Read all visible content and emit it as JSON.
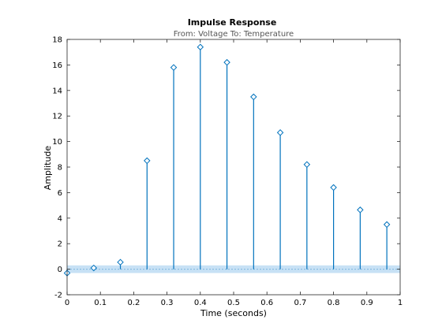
{
  "chart_data": {
    "type": "stem",
    "title": "Impulse Response",
    "subtitle": "From: Voltage  To: Temperature",
    "xlabel": "Time (seconds)",
    "ylabel": "Amplitude",
    "xlim": [
      0,
      1
    ],
    "ylim": [
      -2,
      18
    ],
    "xticks": [
      0,
      0.1,
      0.2,
      0.3,
      0.4,
      0.5,
      0.6,
      0.7,
      0.8,
      0.9,
      1
    ],
    "xtick_labels": [
      "0",
      "0.1",
      "0.2",
      "0.3",
      "0.4",
      "0.5",
      "0.6",
      "0.7",
      "0.8",
      "0.9",
      "1"
    ],
    "yticks": [
      -2,
      0,
      2,
      4,
      6,
      8,
      10,
      12,
      14,
      16,
      18
    ],
    "ytick_labels": [
      "-2",
      "0",
      "2",
      "4",
      "6",
      "8",
      "10",
      "12",
      "14",
      "16",
      "18"
    ],
    "grid": false,
    "series": [
      {
        "x": [
          0,
          0.08,
          0.16,
          0.24,
          0.32,
          0.4,
          0.48,
          0.56,
          0.64,
          0.72,
          0.8,
          0.88,
          0.96
        ],
        "y": [
          -0.3,
          0.1,
          0.55,
          8.5,
          15.8,
          17.4,
          16.2,
          13.5,
          10.7,
          8.2,
          6.4,
          4.65,
          3.5
        ],
        "color": "#0072BD"
      }
    ],
    "band": {
      "range": [
        -0.3,
        0.3
      ],
      "color": "#b9daf2"
    }
  }
}
